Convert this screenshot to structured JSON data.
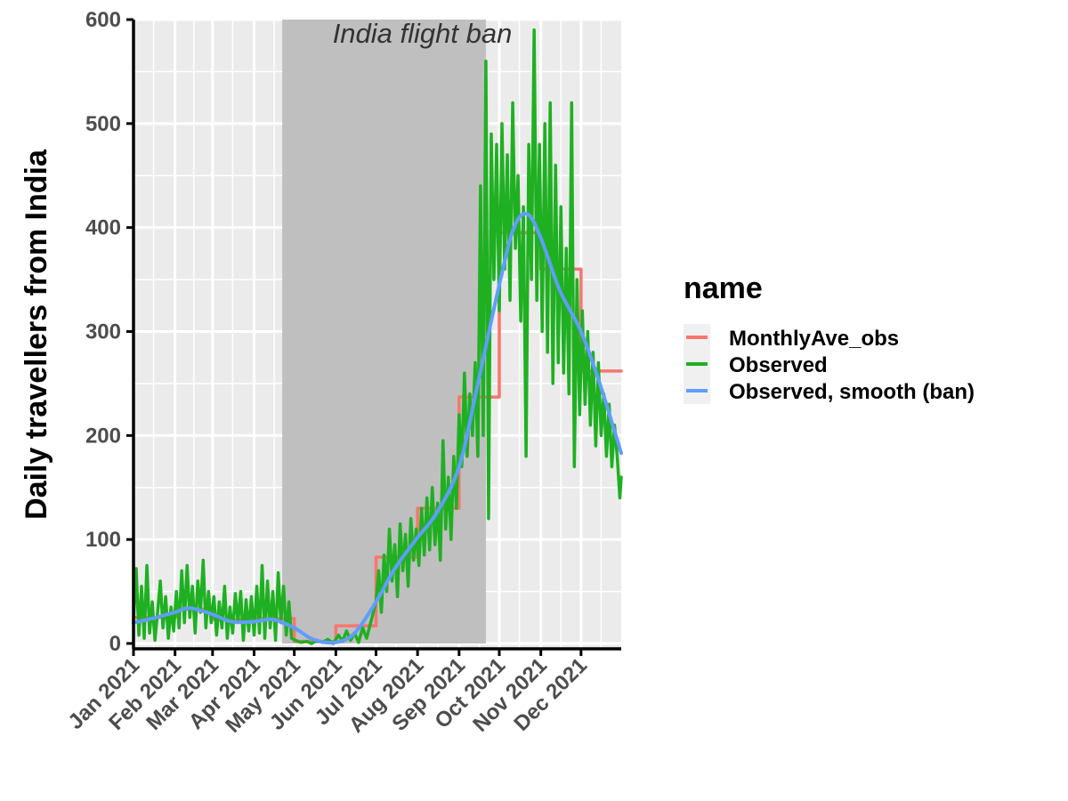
{
  "chart_data": {
    "type": "line",
    "title": "",
    "xlabel": "",
    "ylabel": "Daily travellers from India",
    "x_axis": {
      "type": "date",
      "range": [
        "2021-01-01",
        "2021-12-31"
      ],
      "ticks": [
        "2021-01-01",
        "2021-02-01",
        "2021-03-01",
        "2021-04-01",
        "2021-05-01",
        "2021-06-01",
        "2021-07-01",
        "2021-08-01",
        "2021-09-01",
        "2021-10-01",
        "2021-11-01",
        "2021-12-01"
      ],
      "tick_labels": [
        "Jan 2021",
        "Feb 2021",
        "Mar 2021",
        "Apr 2021",
        "May 2021",
        "Jun 2021",
        "Jul 2021",
        "Aug 2021",
        "Sep 2021",
        "Oct 2021",
        "Nov 2021",
        "Dec 2021"
      ]
    },
    "y_axis": {
      "range": [
        0,
        600
      ],
      "ticks": [
        0,
        100,
        200,
        300,
        400,
        500,
        600
      ],
      "tick_labels": [
        "0",
        "100",
        "200",
        "300",
        "400",
        "500",
        "600"
      ]
    },
    "grid": true,
    "panel_background": "#ebebeb",
    "annotation": {
      "text": "India flight ban",
      "x_start": "2021-04-22",
      "x_end": "2021-09-21",
      "fill": "#bfbfbf"
    },
    "legend": {
      "title": "name",
      "placement": "right",
      "entries": [
        {
          "label": "MonthlyAve_obs",
          "color": "#F8766D"
        },
        {
          "label": "Observed",
          "color": "#1FB022"
        },
        {
          "label": "Observed, smooth (ban)",
          "color": "#619CFF"
        }
      ]
    },
    "series": [
      {
        "name": "MonthlyAve_obs",
        "color": "#F8766D",
        "kind": "step",
        "points": [
          {
            "x": "2021-01-01",
            "y": 25
          },
          {
            "x": "2021-02-01",
            "y": 33
          },
          {
            "x": "2021-03-01",
            "y": 23
          },
          {
            "x": "2021-04-01",
            "y": 24
          },
          {
            "x": "2021-05-01",
            "y": 2
          },
          {
            "x": "2021-06-01",
            "y": 17
          },
          {
            "x": "2021-07-01",
            "y": 83
          },
          {
            "x": "2021-08-01",
            "y": 130
          },
          {
            "x": "2021-09-01",
            "y": 237
          },
          {
            "x": "2021-10-01",
            "y": 395
          },
          {
            "x": "2021-11-01",
            "y": 360
          },
          {
            "x": "2021-12-01",
            "y": 262
          },
          {
            "x": "2021-12-31",
            "y": 262
          }
        ]
      },
      {
        "name": "Observed",
        "color": "#1FB022",
        "kind": "line",
        "points": [
          {
            "x": "2021-01-01",
            "y": 22
          },
          {
            "x": "2021-01-03",
            "y": 72
          },
          {
            "x": "2021-01-05",
            "y": 8
          },
          {
            "x": "2021-01-07",
            "y": 55
          },
          {
            "x": "2021-01-09",
            "y": 5
          },
          {
            "x": "2021-01-11",
            "y": 75
          },
          {
            "x": "2021-01-13",
            "y": 10
          },
          {
            "x": "2021-01-15",
            "y": 40
          },
          {
            "x": "2021-01-17",
            "y": 3
          },
          {
            "x": "2021-01-19",
            "y": 30
          },
          {
            "x": "2021-01-21",
            "y": 60
          },
          {
            "x": "2021-01-23",
            "y": 15
          },
          {
            "x": "2021-01-25",
            "y": 45
          },
          {
            "x": "2021-01-27",
            "y": 5
          },
          {
            "x": "2021-01-29",
            "y": 35
          },
          {
            "x": "2021-01-31",
            "y": 12
          },
          {
            "x": "2021-02-02",
            "y": 50
          },
          {
            "x": "2021-02-04",
            "y": 15
          },
          {
            "x": "2021-02-06",
            "y": 70
          },
          {
            "x": "2021-02-08",
            "y": 20
          },
          {
            "x": "2021-02-10",
            "y": 75
          },
          {
            "x": "2021-02-12",
            "y": 25
          },
          {
            "x": "2021-02-14",
            "y": 55
          },
          {
            "x": "2021-02-16",
            "y": 10
          },
          {
            "x": "2021-02-18",
            "y": 60
          },
          {
            "x": "2021-02-20",
            "y": 30
          },
          {
            "x": "2021-02-22",
            "y": 80
          },
          {
            "x": "2021-02-24",
            "y": 15
          },
          {
            "x": "2021-02-26",
            "y": 50
          },
          {
            "x": "2021-02-28",
            "y": 20
          },
          {
            "x": "2021-03-02",
            "y": 45
          },
          {
            "x": "2021-03-04",
            "y": 8
          },
          {
            "x": "2021-03-06",
            "y": 40
          },
          {
            "x": "2021-03-08",
            "y": 15
          },
          {
            "x": "2021-03-10",
            "y": 55
          },
          {
            "x": "2021-03-12",
            "y": 5
          },
          {
            "x": "2021-03-14",
            "y": 35
          },
          {
            "x": "2021-03-16",
            "y": 10
          },
          {
            "x": "2021-03-18",
            "y": 48
          },
          {
            "x": "2021-03-20",
            "y": 20
          },
          {
            "x": "2021-03-22",
            "y": 50
          },
          {
            "x": "2021-03-24",
            "y": 3
          },
          {
            "x": "2021-03-26",
            "y": 42
          },
          {
            "x": "2021-03-28",
            "y": 12
          },
          {
            "x": "2021-03-30",
            "y": 45
          },
          {
            "x": "2021-04-01",
            "y": 8
          },
          {
            "x": "2021-04-03",
            "y": 55
          },
          {
            "x": "2021-04-05",
            "y": 10
          },
          {
            "x": "2021-04-07",
            "y": 75
          },
          {
            "x": "2021-04-09",
            "y": 5
          },
          {
            "x": "2021-04-11",
            "y": 60
          },
          {
            "x": "2021-04-13",
            "y": 15
          },
          {
            "x": "2021-04-15",
            "y": 50
          },
          {
            "x": "2021-04-17",
            "y": 3
          },
          {
            "x": "2021-04-19",
            "y": 68
          },
          {
            "x": "2021-04-21",
            "y": 20
          },
          {
            "x": "2021-04-23",
            "y": 55
          },
          {
            "x": "2021-04-25",
            "y": 8
          },
          {
            "x": "2021-04-27",
            "y": 40
          },
          {
            "x": "2021-04-29",
            "y": 5
          },
          {
            "x": "2021-05-02",
            "y": 3
          },
          {
            "x": "2021-05-06",
            "y": 1
          },
          {
            "x": "2021-05-10",
            "y": 2
          },
          {
            "x": "2021-05-14",
            "y": 0
          },
          {
            "x": "2021-05-18",
            "y": 3
          },
          {
            "x": "2021-05-22",
            "y": 1
          },
          {
            "x": "2021-05-26",
            "y": 4
          },
          {
            "x": "2021-05-30",
            "y": 0
          },
          {
            "x": "2021-06-03",
            "y": 8
          },
          {
            "x": "2021-06-06",
            "y": 2
          },
          {
            "x": "2021-06-09",
            "y": 12
          },
          {
            "x": "2021-06-12",
            "y": 3
          },
          {
            "x": "2021-06-15",
            "y": 10
          },
          {
            "x": "2021-06-18",
            "y": 1
          },
          {
            "x": "2021-06-21",
            "y": 15
          },
          {
            "x": "2021-06-24",
            "y": 5
          },
          {
            "x": "2021-06-27",
            "y": 20
          },
          {
            "x": "2021-07-01",
            "y": 40
          },
          {
            "x": "2021-07-03",
            "y": 70
          },
          {
            "x": "2021-07-05",
            "y": 30
          },
          {
            "x": "2021-07-07",
            "y": 85
          },
          {
            "x": "2021-07-09",
            "y": 50
          },
          {
            "x": "2021-07-11",
            "y": 110
          },
          {
            "x": "2021-07-13",
            "y": 60
          },
          {
            "x": "2021-07-15",
            "y": 95
          },
          {
            "x": "2021-07-17",
            "y": 45
          },
          {
            "x": "2021-07-19",
            "y": 115
          },
          {
            "x": "2021-07-21",
            "y": 70
          },
          {
            "x": "2021-07-23",
            "y": 105
          },
          {
            "x": "2021-07-25",
            "y": 55
          },
          {
            "x": "2021-07-27",
            "y": 120
          },
          {
            "x": "2021-07-29",
            "y": 80
          },
          {
            "x": "2021-07-31",
            "y": 110
          },
          {
            "x": "2021-08-02",
            "y": 75
          },
          {
            "x": "2021-08-04",
            "y": 130
          },
          {
            "x": "2021-08-06",
            "y": 85
          },
          {
            "x": "2021-08-08",
            "y": 140
          },
          {
            "x": "2021-08-10",
            "y": 90
          },
          {
            "x": "2021-08-12",
            "y": 150
          },
          {
            "x": "2021-08-14",
            "y": 95
          },
          {
            "x": "2021-08-16",
            "y": 135
          },
          {
            "x": "2021-08-18",
            "y": 80
          },
          {
            "x": "2021-08-20",
            "y": 195
          },
          {
            "x": "2021-08-22",
            "y": 110
          },
          {
            "x": "2021-08-24",
            "y": 160
          },
          {
            "x": "2021-08-26",
            "y": 100
          },
          {
            "x": "2021-08-28",
            "y": 180
          },
          {
            "x": "2021-08-30",
            "y": 130
          },
          {
            "x": "2021-09-01",
            "y": 220
          },
          {
            "x": "2021-09-03",
            "y": 170
          },
          {
            "x": "2021-09-05",
            "y": 260
          },
          {
            "x": "2021-09-07",
            "y": 180
          },
          {
            "x": "2021-09-09",
            "y": 240
          },
          {
            "x": "2021-09-11",
            "y": 200
          },
          {
            "x": "2021-09-13",
            "y": 270
          },
          {
            "x": "2021-09-15",
            "y": 180
          },
          {
            "x": "2021-09-17",
            "y": 440
          },
          {
            "x": "2021-09-19",
            "y": 200
          },
          {
            "x": "2021-09-21",
            "y": 560
          },
          {
            "x": "2021-09-23",
            "y": 120
          },
          {
            "x": "2021-09-25",
            "y": 490
          },
          {
            "x": "2021-09-27",
            "y": 350
          },
          {
            "x": "2021-09-29",
            "y": 480
          },
          {
            "x": "2021-10-01",
            "y": 320
          },
          {
            "x": "2021-10-03",
            "y": 500
          },
          {
            "x": "2021-10-05",
            "y": 360
          },
          {
            "x": "2021-10-07",
            "y": 470
          },
          {
            "x": "2021-10-09",
            "y": 330
          },
          {
            "x": "2021-10-11",
            "y": 520
          },
          {
            "x": "2021-10-13",
            "y": 380
          },
          {
            "x": "2021-10-15",
            "y": 450
          },
          {
            "x": "2021-10-17",
            "y": 310
          },
          {
            "x": "2021-10-19",
            "y": 420
          },
          {
            "x": "2021-10-21",
            "y": 180
          },
          {
            "x": "2021-10-23",
            "y": 480
          },
          {
            "x": "2021-10-25",
            "y": 350
          },
          {
            "x": "2021-10-27",
            "y": 590
          },
          {
            "x": "2021-10-29",
            "y": 330
          },
          {
            "x": "2021-10-31",
            "y": 480
          },
          {
            "x": "2021-11-02",
            "y": 300
          },
          {
            "x": "2021-11-04",
            "y": 500
          },
          {
            "x": "2021-11-06",
            "y": 280
          },
          {
            "x": "2021-11-08",
            "y": 520
          },
          {
            "x": "2021-11-10",
            "y": 250
          },
          {
            "x": "2021-11-12",
            "y": 460
          },
          {
            "x": "2021-11-14",
            "y": 270
          },
          {
            "x": "2021-11-16",
            "y": 420
          },
          {
            "x": "2021-11-18",
            "y": 260
          },
          {
            "x": "2021-11-20",
            "y": 380
          },
          {
            "x": "2021-11-22",
            "y": 240
          },
          {
            "x": "2021-11-24",
            "y": 520
          },
          {
            "x": "2021-11-26",
            "y": 170
          },
          {
            "x": "2021-11-28",
            "y": 350
          },
          {
            "x": "2021-11-30",
            "y": 220
          },
          {
            "x": "2021-12-02",
            "y": 320
          },
          {
            "x": "2021-12-04",
            "y": 230
          },
          {
            "x": "2021-12-06",
            "y": 300
          },
          {
            "x": "2021-12-08",
            "y": 210
          },
          {
            "x": "2021-12-10",
            "y": 280
          },
          {
            "x": "2021-12-12",
            "y": 190
          },
          {
            "x": "2021-12-14",
            "y": 270
          },
          {
            "x": "2021-12-16",
            "y": 200
          },
          {
            "x": "2021-12-18",
            "y": 240
          },
          {
            "x": "2021-12-20",
            "y": 180
          },
          {
            "x": "2021-12-22",
            "y": 230
          },
          {
            "x": "2021-12-24",
            "y": 170
          },
          {
            "x": "2021-12-26",
            "y": 210
          },
          {
            "x": "2021-12-28",
            "y": 180
          },
          {
            "x": "2021-12-30",
            "y": 140
          },
          {
            "x": "2021-12-31",
            "y": 160
          }
        ]
      },
      {
        "name": "Observed, smooth (ban)",
        "color": "#619CFF",
        "kind": "smooth",
        "points": [
          {
            "x": "2021-01-01",
            "y": 20
          },
          {
            "x": "2021-01-15",
            "y": 24
          },
          {
            "x": "2021-02-01",
            "y": 30
          },
          {
            "x": "2021-02-12",
            "y": 34
          },
          {
            "x": "2021-03-01",
            "y": 28
          },
          {
            "x": "2021-03-15",
            "y": 21
          },
          {
            "x": "2021-04-01",
            "y": 21
          },
          {
            "x": "2021-04-15",
            "y": 23
          },
          {
            "x": "2021-05-01",
            "y": 15
          },
          {
            "x": "2021-05-15",
            "y": 4
          },
          {
            "x": "2021-06-01",
            "y": 1
          },
          {
            "x": "2021-06-15",
            "y": 10
          },
          {
            "x": "2021-07-01",
            "y": 40
          },
          {
            "x": "2021-07-15",
            "y": 72
          },
          {
            "x": "2021-08-01",
            "y": 102
          },
          {
            "x": "2021-08-15",
            "y": 125
          },
          {
            "x": "2021-09-01",
            "y": 170
          },
          {
            "x": "2021-09-15",
            "y": 250
          },
          {
            "x": "2021-10-01",
            "y": 345
          },
          {
            "x": "2021-10-12",
            "y": 400
          },
          {
            "x": "2021-10-22",
            "y": 413
          },
          {
            "x": "2021-11-01",
            "y": 390
          },
          {
            "x": "2021-11-15",
            "y": 340
          },
          {
            "x": "2021-12-01",
            "y": 300
          },
          {
            "x": "2021-12-15",
            "y": 250
          },
          {
            "x": "2021-12-31",
            "y": 183
          }
        ]
      }
    ]
  }
}
